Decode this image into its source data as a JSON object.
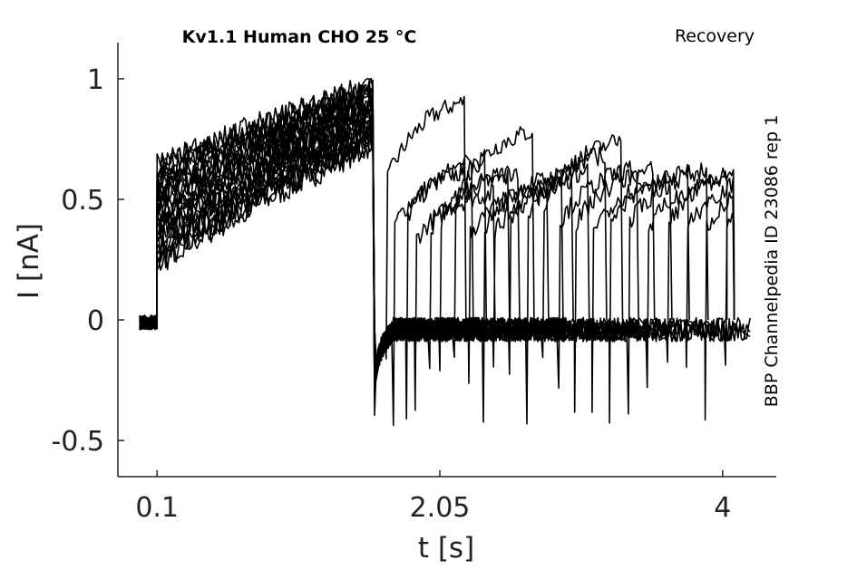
{
  "chart_data": {
    "type": "line",
    "title": "Kv1.1  Human  CHO  25 °C",
    "corner_label": "Recovery",
    "side_label": "BBP Channelpedia ID 23086 rep 1",
    "xlabel": "t [s]",
    "ylabel": "I [nA]",
    "xlim": [
      -0.17,
      4.37
    ],
    "ylim": [
      -0.65,
      1.15
    ],
    "x_ticks": [
      0.1,
      2.05,
      4
    ],
    "x_tick_labels": [
      "0.1",
      "2.05",
      "4"
    ],
    "y_ticks": [
      -0.5,
      0,
      0.5,
      1
    ],
    "y_tick_labels": [
      "-0.5",
      "0",
      "0.5",
      "1"
    ],
    "grid": false,
    "line_color": "#000000",
    "protocol": {
      "baseline_start": -0.02,
      "step_on": 0.1,
      "step_off": 1.6,
      "trace_end": 4.2,
      "sweep_count": 26,
      "prepulse_current_range": [
        0.22,
        1.0
      ],
      "baseline_noise": 0.03
    },
    "recovery_pulses": [
      {
        "t_on": 1.68,
        "peak": 0.95
      },
      {
        "t_on": 1.73,
        "peak": 0.65
      },
      {
        "t_on": 1.82,
        "peak": 0.7
      },
      {
        "t_on": 1.88,
        "peak": 0.55
      },
      {
        "t_on": 1.98,
        "peak": 0.62
      },
      {
        "t_on": 2.05,
        "peak": 0.65
      },
      {
        "t_on": 2.15,
        "peak": 0.82
      },
      {
        "t_on": 2.25,
        "peak": 0.58
      },
      {
        "t_on": 2.35,
        "peak": 0.63
      },
      {
        "t_on": 2.42,
        "peak": 0.6
      },
      {
        "t_on": 2.53,
        "peak": 0.65
      },
      {
        "t_on": 2.65,
        "peak": 0.72
      },
      {
        "t_on": 2.76,
        "peak": 0.78
      },
      {
        "t_on": 2.87,
        "peak": 0.66
      },
      {
        "t_on": 2.98,
        "peak": 0.65
      },
      {
        "t_on": 3.1,
        "peak": 0.62
      },
      {
        "t_on": 3.22,
        "peak": 0.64
      },
      {
        "t_on": 3.35,
        "peak": 0.65
      },
      {
        "t_on": 3.48,
        "peak": 0.62
      },
      {
        "t_on": 3.62,
        "peak": 0.65
      },
      {
        "t_on": 3.75,
        "peak": 0.63
      },
      {
        "t_on": 3.88,
        "peak": 0.62
      },
      {
        "t_on": 4.02,
        "peak": 0.65
      }
    ]
  }
}
